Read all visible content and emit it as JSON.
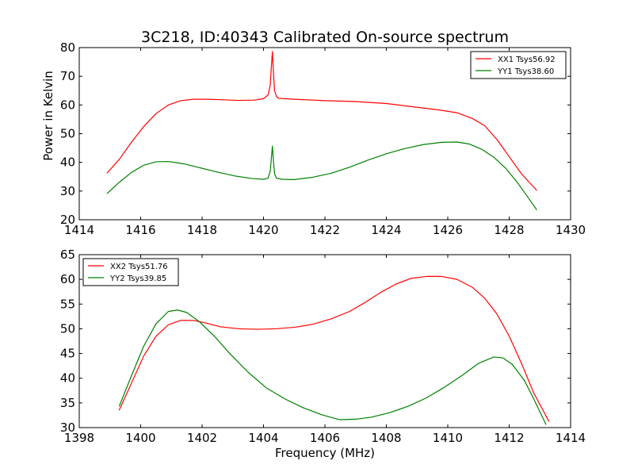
{
  "figure_title": "3C218, ID:40343 Calibrated On-source spectrum",
  "chart_data": [
    {
      "type": "line",
      "ylabel": "Power in Kelvin",
      "xlabel": "",
      "xlim": [
        1414,
        1430
      ],
      "ylim": [
        20,
        80
      ],
      "xticks": [
        "1414",
        "1416",
        "1418",
        "1420",
        "1422",
        "1424",
        "1426",
        "1428",
        "1430"
      ],
      "yticks": [
        "20",
        "30",
        "40",
        "50",
        "60",
        "70",
        "80"
      ],
      "grid": false,
      "legend_position": "top-right",
      "series": [
        {
          "name": "XX1 Tsys56.92",
          "color": "#ff0000",
          "points": [
            [
              1414.9,
              36.2
            ],
            [
              1415.3,
              41
            ],
            [
              1415.7,
              47
            ],
            [
              1416.1,
              52.5
            ],
            [
              1416.5,
              57
            ],
            [
              1416.9,
              60
            ],
            [
              1417.3,
              61.5
            ],
            [
              1417.7,
              62
            ],
            [
              1418.2,
              62
            ],
            [
              1418.7,
              61.8
            ],
            [
              1419.2,
              61.6
            ],
            [
              1419.7,
              61.7
            ],
            [
              1420.0,
              62.2
            ],
            [
              1420.15,
              63.5
            ],
            [
              1420.22,
              67
            ],
            [
              1420.26,
              74
            ],
            [
              1420.29,
              78.6
            ],
            [
              1420.32,
              72
            ],
            [
              1420.36,
              65
            ],
            [
              1420.42,
              63
            ],
            [
              1420.5,
              62.3
            ],
            [
              1421,
              62
            ],
            [
              1422,
              61.5
            ],
            [
              1423,
              61.2
            ],
            [
              1424,
              60.5
            ],
            [
              1425,
              59.2
            ],
            [
              1425.7,
              58.3
            ],
            [
              1426.3,
              57.3
            ],
            [
              1426.8,
              55.3
            ],
            [
              1427.2,
              52.8
            ],
            [
              1427.6,
              48
            ],
            [
              1428.0,
              42
            ],
            [
              1428.4,
              36
            ],
            [
              1428.9,
              30.2
            ]
          ]
        },
        {
          "name": "YY1 Tsys38.60",
          "color": "#008000",
          "points": [
            [
              1414.9,
              29.1
            ],
            [
              1415.3,
              33
            ],
            [
              1415.7,
              36.5
            ],
            [
              1416.1,
              39
            ],
            [
              1416.5,
              40.2
            ],
            [
              1416.9,
              40.3
            ],
            [
              1417.4,
              39.5
            ],
            [
              1417.9,
              38.2
            ],
            [
              1418.5,
              36.6
            ],
            [
              1419.1,
              35.2
            ],
            [
              1419.6,
              34.4
            ],
            [
              1420.0,
              34.1
            ],
            [
              1420.15,
              34.5
            ],
            [
              1420.22,
              37
            ],
            [
              1420.26,
              42
            ],
            [
              1420.29,
              45.7
            ],
            [
              1420.32,
              41
            ],
            [
              1420.36,
              36
            ],
            [
              1420.42,
              34.5
            ],
            [
              1420.6,
              34.1
            ],
            [
              1421,
              34
            ],
            [
              1421.6,
              34.8
            ],
            [
              1422.2,
              36.2
            ],
            [
              1422.8,
              38.3
            ],
            [
              1423.4,
              40.8
            ],
            [
              1424,
              43
            ],
            [
              1424.6,
              44.8
            ],
            [
              1425.2,
              46.2
            ],
            [
              1425.8,
              47
            ],
            [
              1426.3,
              47.1
            ],
            [
              1426.7,
              46.4
            ],
            [
              1427.1,
              44.6
            ],
            [
              1427.5,
              41.8
            ],
            [
              1427.9,
              37.8
            ],
            [
              1428.3,
              32.5
            ],
            [
              1428.6,
              28
            ],
            [
              1428.9,
              23.4
            ]
          ]
        }
      ]
    },
    {
      "type": "line",
      "ylabel": "",
      "xlabel": "Frequency (MHz)",
      "xlim": [
        1398,
        1414
      ],
      "ylim": [
        30,
        65
      ],
      "xticks": [
        "1398",
        "1400",
        "1402",
        "1404",
        "1406",
        "1408",
        "1410",
        "1412",
        "1414"
      ],
      "yticks": [
        "30",
        "35",
        "40",
        "45",
        "50",
        "55",
        "60",
        "65"
      ],
      "grid": false,
      "legend_position": "top-left",
      "series": [
        {
          "name": "XX2 Tsys51.76",
          "color": "#ff0000",
          "points": [
            [
              1399.3,
              33.5
            ],
            [
              1399.7,
              39
            ],
            [
              1400.1,
              44.5
            ],
            [
              1400.5,
              48.5
            ],
            [
              1400.9,
              50.8
            ],
            [
              1401.3,
              51.7
            ],
            [
              1401.7,
              51.7
            ],
            [
              1402.1,
              51.2
            ],
            [
              1402.6,
              50.4
            ],
            [
              1403.2,
              50.0
            ],
            [
              1403.8,
              49.9
            ],
            [
              1404.4,
              50.0
            ],
            [
              1405,
              50.3
            ],
            [
              1405.6,
              50.9
            ],
            [
              1406.2,
              52.0
            ],
            [
              1406.8,
              53.5
            ],
            [
              1407.3,
              55.3
            ],
            [
              1407.8,
              57.3
            ],
            [
              1408.3,
              59.0
            ],
            [
              1408.8,
              60.2
            ],
            [
              1409.3,
              60.6
            ],
            [
              1409.8,
              60.6
            ],
            [
              1410.3,
              60.0
            ],
            [
              1410.8,
              58.4
            ],
            [
              1411.2,
              56.2
            ],
            [
              1411.6,
              53
            ],
            [
              1412.0,
              48.5
            ],
            [
              1412.4,
              43
            ],
            [
              1412.8,
              37
            ],
            [
              1413.3,
              31.2
            ]
          ]
        },
        {
          "name": "YY2 Tsys39.85",
          "color": "#008000",
          "points": [
            [
              1399.3,
              34.3
            ],
            [
              1399.7,
              40.5
            ],
            [
              1400.1,
              46.5
            ],
            [
              1400.5,
              51
            ],
            [
              1400.9,
              53.5
            ],
            [
              1401.2,
              53.8
            ],
            [
              1401.5,
              53.3
            ],
            [
              1401.9,
              51.5
            ],
            [
              1402.4,
              48.5
            ],
            [
              1402.9,
              45
            ],
            [
              1403.5,
              41.2
            ],
            [
              1404.1,
              38
            ],
            [
              1404.7,
              35.8
            ],
            [
              1405.3,
              34.0
            ],
            [
              1405.9,
              32.6
            ],
            [
              1406.3,
              31.9
            ],
            [
              1406.5,
              31.6
            ],
            [
              1407,
              31.7
            ],
            [
              1407.5,
              32.1
            ],
            [
              1408.1,
              33.0
            ],
            [
              1408.7,
              34.3
            ],
            [
              1409.3,
              36
            ],
            [
              1409.9,
              38.2
            ],
            [
              1410.5,
              40.7
            ],
            [
              1411.0,
              43.0
            ],
            [
              1411.5,
              44.3
            ],
            [
              1411.8,
              44.1
            ],
            [
              1412.1,
              42.8
            ],
            [
              1412.5,
              39.5
            ],
            [
              1412.8,
              35.8
            ],
            [
              1413.2,
              30.6
            ]
          ]
        }
      ]
    }
  ]
}
